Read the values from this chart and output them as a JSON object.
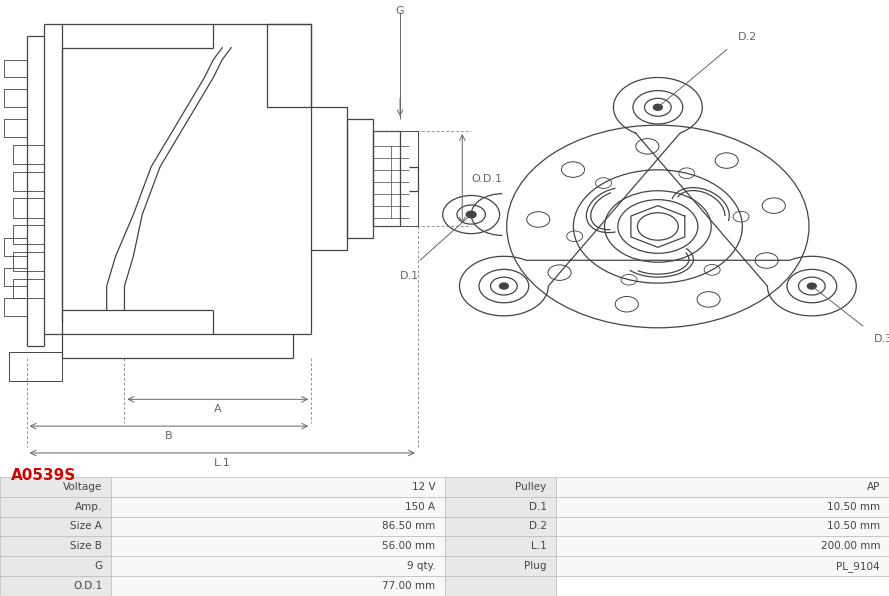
{
  "title": "A0539S",
  "title_color": "#cc0000",
  "bg_color": "#ffffff",
  "table_rows": [
    [
      "Voltage",
      "12 V",
      "Pulley",
      "AP"
    ],
    [
      "Amp.",
      "150 A",
      "D.1",
      "10.50 mm"
    ],
    [
      "Size A",
      "86.50 mm",
      "D.2",
      "10.50 mm"
    ],
    [
      "Size B",
      "56.00 mm",
      "L.1",
      "200.00 mm"
    ],
    [
      "G",
      "9 qty.",
      "Plug",
      "PL_9104"
    ],
    [
      "O.D.1",
      "77.00 mm",
      "",
      ""
    ]
  ],
  "label_bg": "#e8e8e8",
  "value_bg": "#f8f8f8",
  "empty_bg": "#ffffff",
  "line_color": "#bbbbbb",
  "text_color": "#444444",
  "drawing_line_color": "#444444",
  "dim_line_color": "#666666"
}
